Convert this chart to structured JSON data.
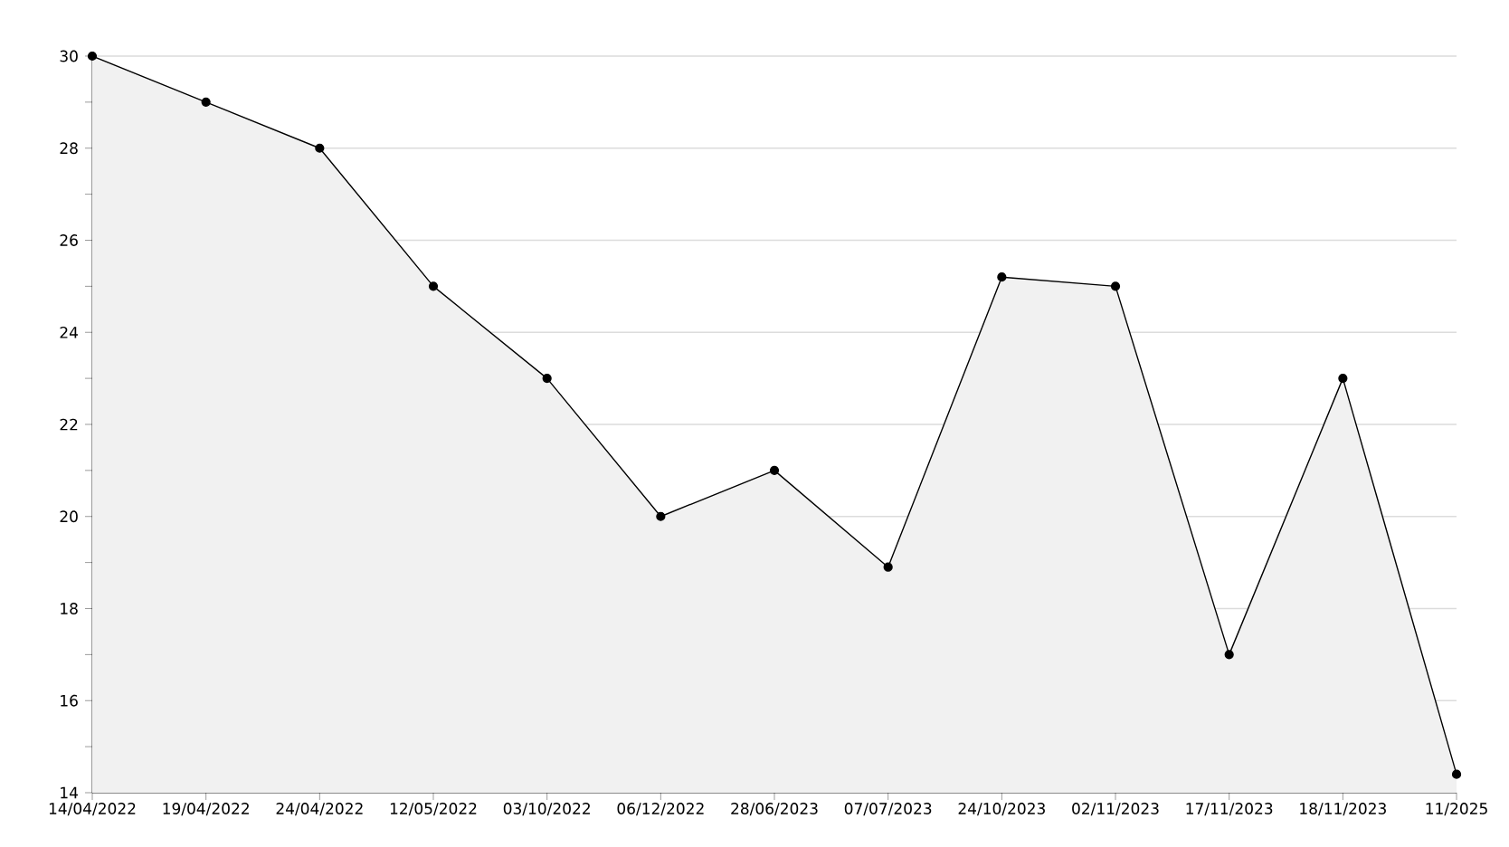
{
  "chart_data": {
    "type": "area",
    "categories": [
      "14/04/2022",
      "19/04/2022",
      "24/04/2022",
      "12/05/2022",
      "03/10/2022",
      "06/12/2022",
      "28/06/2023",
      "07/07/2023",
      "24/10/2023",
      "02/11/2023",
      "17/11/2023",
      "18/11/2023",
      "11/2025"
    ],
    "series": [
      {
        "color": "#000000",
        "values": [
          30,
          29,
          28,
          25,
          23,
          20,
          21,
          18.9,
          25.2,
          25,
          17,
          23,
          14.4
        ]
      }
    ],
    "ylim": [
      14,
      30
    ],
    "yticks": [
      14,
      {
        "value": 15,
        "label": null
      },
      16,
      {
        "value": 17,
        "label": null
      },
      18,
      {
        "value": 19,
        "label": null
      },
      20,
      {
        "value": 21,
        "label": null
      },
      22,
      {
        "value": 23,
        "label": null
      },
      24,
      {
        "value": 25,
        "label": null
      },
      26,
      {
        "value": 27,
        "label": null
      },
      28,
      {
        "value": 29,
        "label": null
      },
      30
    ],
    "grid": "y",
    "marker": "circle",
    "line_style": "solid"
  }
}
